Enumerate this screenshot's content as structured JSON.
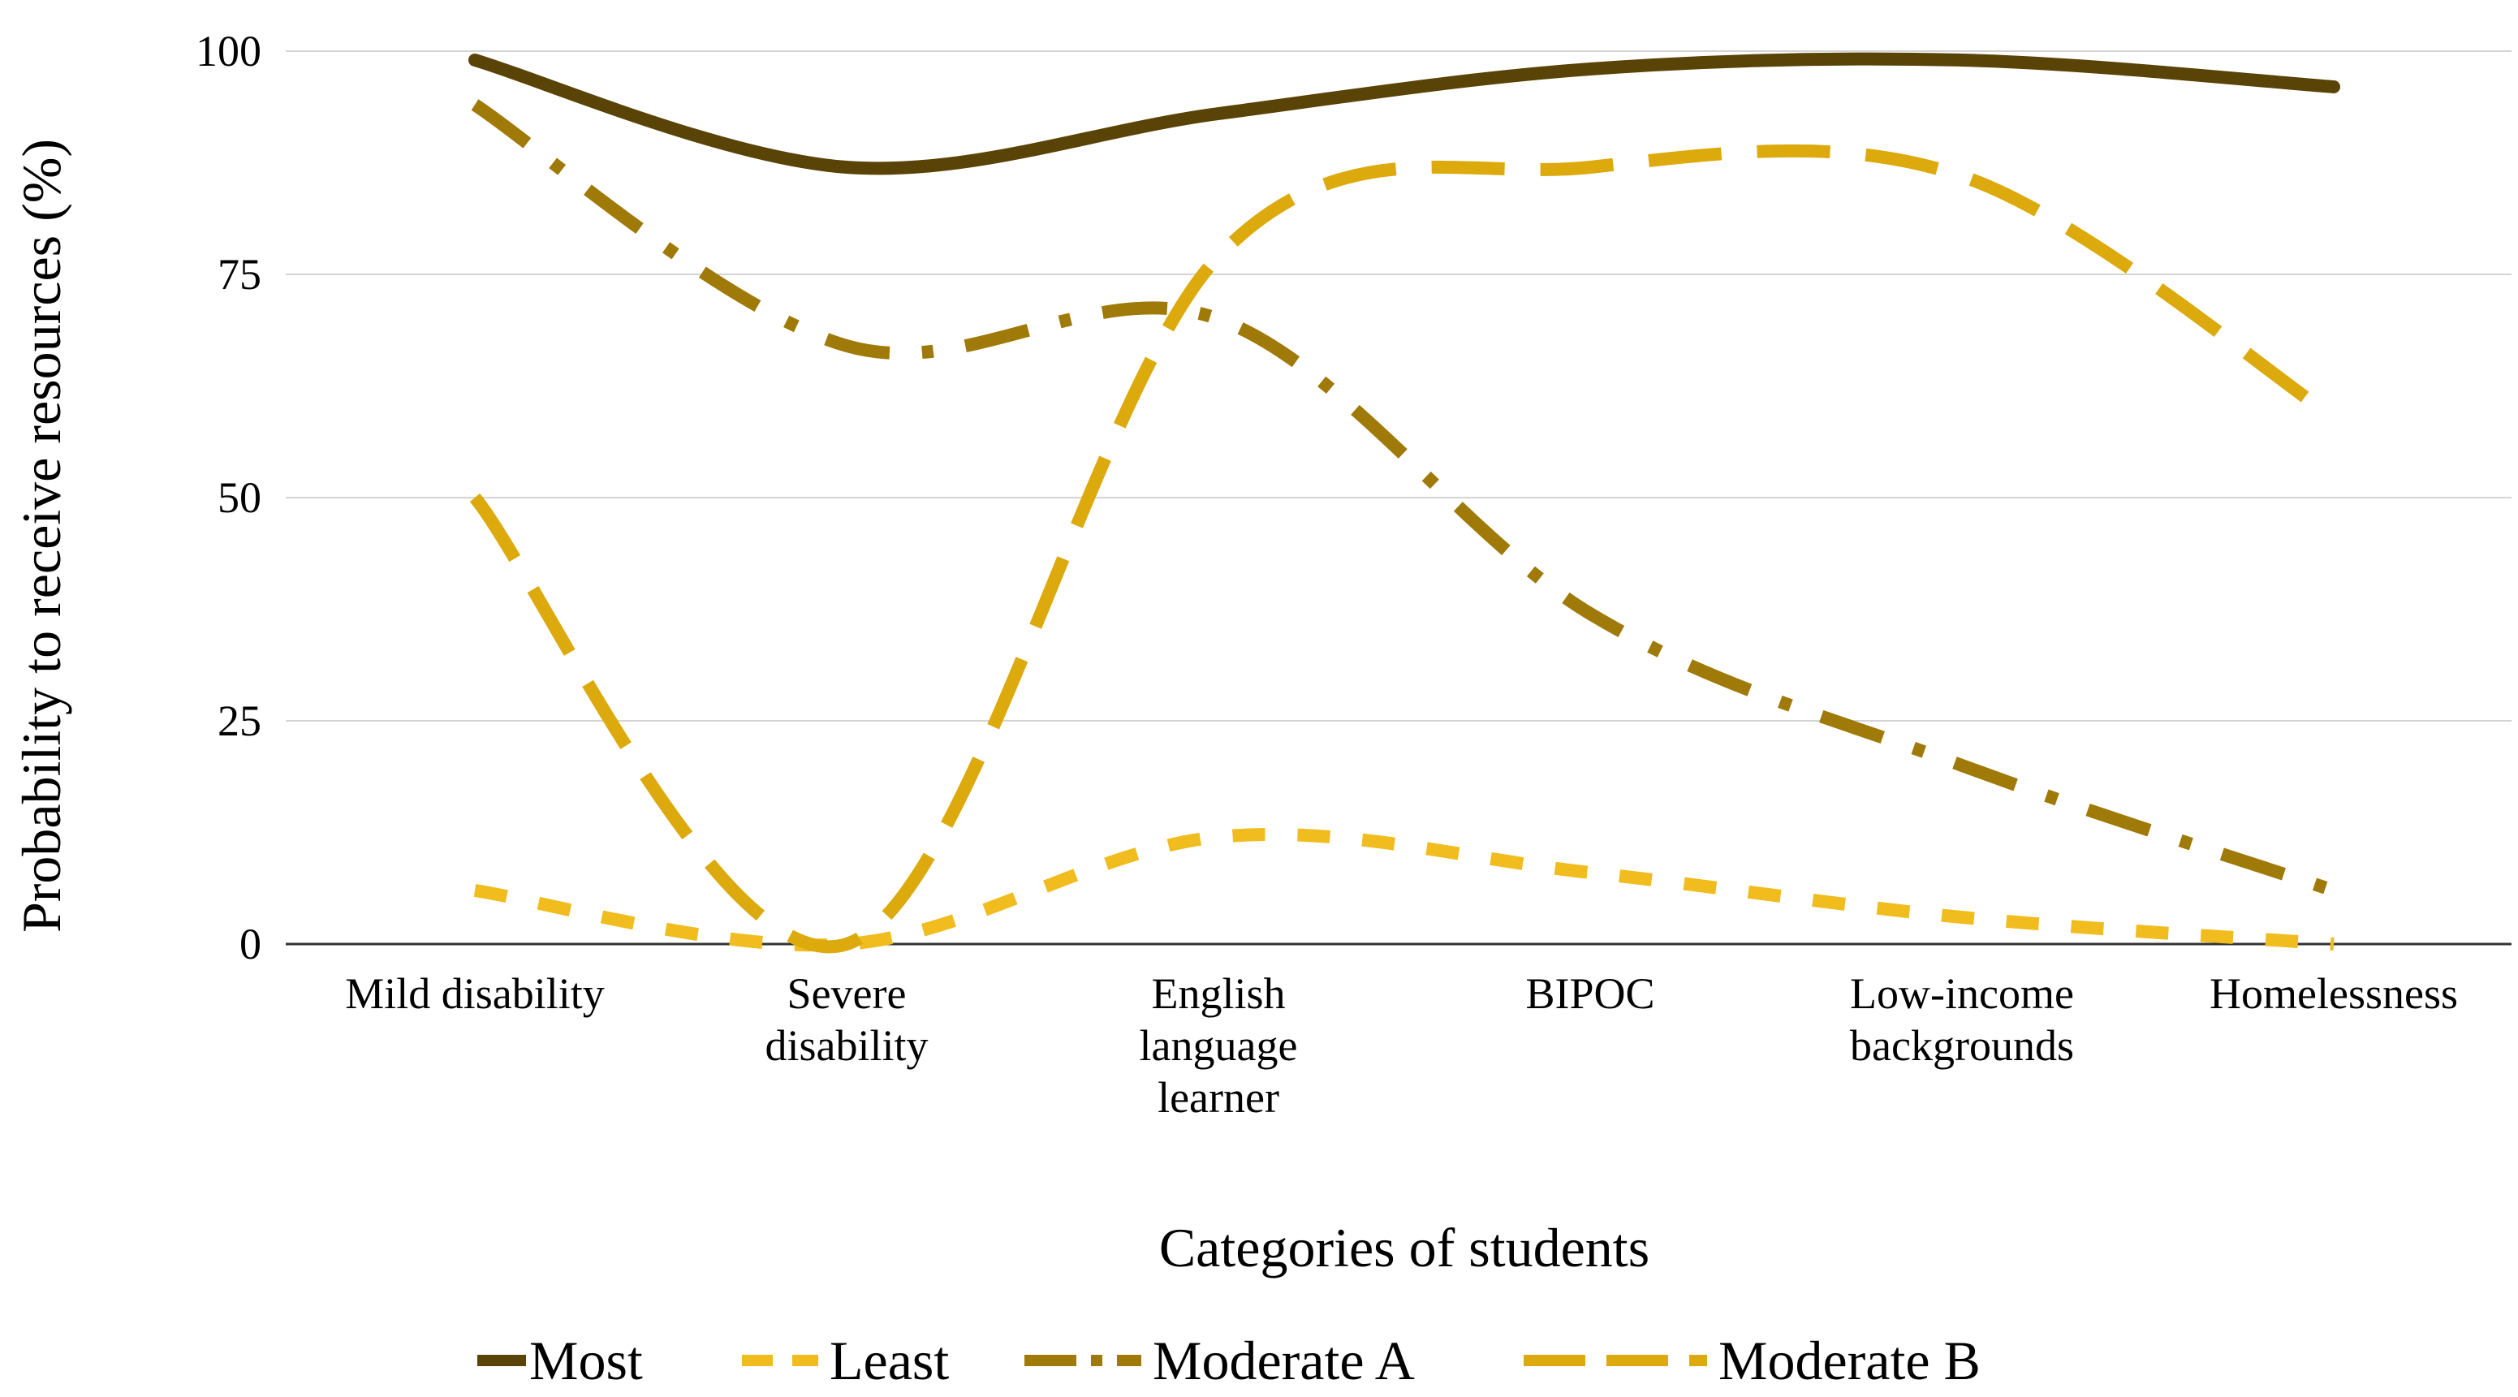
{
  "chart_data": {
    "type": "line",
    "title": "",
    "xlabel": "Categories of students",
    "ylabel": "Probability to receive resources (%)",
    "ylim": [
      0,
      100
    ],
    "yticks": [
      "0",
      "25",
      "50",
      "75",
      "100"
    ],
    "grid": true,
    "legend_position": "bottom",
    "categories": [
      [
        "Mild disability"
      ],
      [
        "Severe",
        "disability"
      ],
      [
        "English",
        "language",
        "learner"
      ],
      [
        "BIPOC"
      ],
      [
        "Low-income",
        "backgrounds"
      ],
      [
        "Homelessness"
      ]
    ],
    "series": [
      {
        "name": "Most",
        "color": "#5a4306",
        "style": "solid",
        "values": [
          99,
          87,
          93,
          98,
          99,
          96
        ]
      },
      {
        "name": "Least",
        "color": "#f0bc1e",
        "style": "dash",
        "values": [
          6,
          0,
          12,
          8,
          3,
          0
        ]
      },
      {
        "name": "Moderate A",
        "color": "#a07a08",
        "style": "dashdot",
        "values": [
          94,
          67,
          70,
          37,
          20,
          6
        ]
      },
      {
        "name": "Moderate B",
        "color": "#dcaa0c",
        "style": "longdash",
        "values": [
          50,
          0,
          77,
          87,
          86,
          59
        ]
      }
    ]
  }
}
